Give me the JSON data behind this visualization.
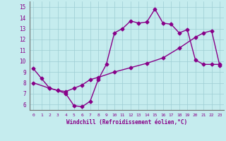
{
  "xlabel": "Windchill (Refroidissement éolien,°C)",
  "background_color": "#c5ecee",
  "line_color": "#880088",
  "xlim": [
    -0.5,
    23.5
  ],
  "ylim": [
    5.5,
    15.5
  ],
  "yticks": [
    6,
    7,
    8,
    9,
    10,
    11,
    12,
    13,
    14,
    15
  ],
  "xticks": [
    0,
    1,
    2,
    3,
    4,
    5,
    6,
    7,
    8,
    9,
    10,
    11,
    12,
    13,
    14,
    15,
    16,
    17,
    18,
    19,
    20,
    21,
    22,
    23
  ],
  "series1_x": [
    0,
    1,
    2,
    3,
    4,
    5,
    6,
    7,
    8,
    9,
    10,
    11,
    12,
    13,
    14,
    15,
    16,
    17,
    18,
    19,
    20,
    21,
    22,
    23
  ],
  "series1_y": [
    9.3,
    8.4,
    7.5,
    7.3,
    7.0,
    5.9,
    5.8,
    6.3,
    8.3,
    9.7,
    12.6,
    13.0,
    13.7,
    13.5,
    13.6,
    14.8,
    13.5,
    13.4,
    12.6,
    12.9,
    10.1,
    9.7,
    9.7,
    9.7
  ],
  "series2_x": [
    0,
    2,
    3,
    4,
    5,
    6,
    7,
    8,
    10,
    12,
    14,
    16,
    18,
    20,
    21,
    22,
    23
  ],
  "series2_y": [
    8.0,
    7.5,
    7.3,
    7.2,
    7.5,
    7.8,
    8.3,
    8.5,
    9.0,
    9.4,
    9.8,
    10.3,
    11.2,
    12.2,
    12.6,
    12.8,
    9.6
  ],
  "grid_color": "#9dcdd4",
  "marker": "D",
  "markersize": 2.5,
  "linewidth": 1.0
}
